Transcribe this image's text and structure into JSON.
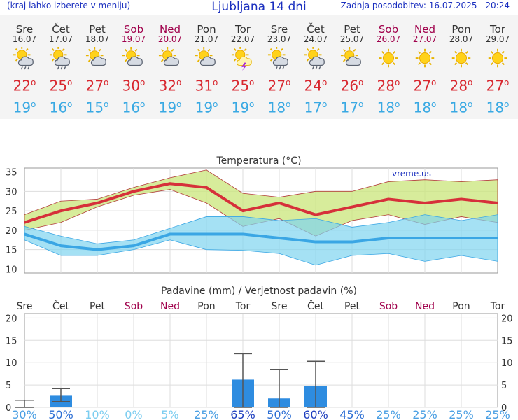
{
  "header": {
    "menu_hint": "(kraj lahko izberete v meniju)",
    "title": "Ljubljana 14 dni",
    "updated": "Zadnja posodobitev: 16.07.2025 - 20:24"
  },
  "days": [
    {
      "name": "Sre",
      "date": "16.07",
      "weekend": false,
      "icon": "sun-cloud-rain-icon",
      "max": "22",
      "min": "19"
    },
    {
      "name": "Čet",
      "date": "17.07",
      "weekend": false,
      "icon": "sun-cloud-rain-icon",
      "max": "25",
      "min": "16"
    },
    {
      "name": "Pet",
      "date": "18.07",
      "weekend": false,
      "icon": "sun-cloud-icon",
      "max": "27",
      "min": "15"
    },
    {
      "name": "Sob",
      "date": "19.07",
      "weekend": true,
      "icon": "sun-cloud-icon",
      "max": "30",
      "min": "16"
    },
    {
      "name": "Ned",
      "date": "20.07",
      "weekend": true,
      "icon": "sun-cloud-icon",
      "max": "32",
      "min": "19"
    },
    {
      "name": "Pon",
      "date": "21.07",
      "weekend": false,
      "icon": "sun-cloud-icon",
      "max": "31",
      "min": "19"
    },
    {
      "name": "Tor",
      "date": "22.07",
      "weekend": false,
      "icon": "sun-cloud-storm-icon",
      "max": "25",
      "min": "19"
    },
    {
      "name": "Sre",
      "date": "23.07",
      "weekend": false,
      "icon": "sun-cloud-rain-icon",
      "max": "27",
      "min": "18"
    },
    {
      "name": "Čet",
      "date": "24.07",
      "weekend": false,
      "icon": "sun-cloud-rain-icon",
      "max": "24",
      "min": "17"
    },
    {
      "name": "Pet",
      "date": "25.07",
      "weekend": false,
      "icon": "sun-cloud-icon",
      "max": "26",
      "min": "17"
    },
    {
      "name": "Sob",
      "date": "26.07",
      "weekend": true,
      "icon": "sun-icon",
      "max": "28",
      "min": "18"
    },
    {
      "name": "Ned",
      "date": "27.07",
      "weekend": true,
      "icon": "sun-icon",
      "max": "27",
      "min": "18"
    },
    {
      "name": "Pon",
      "date": "28.07",
      "weekend": false,
      "icon": "sun-icon",
      "max": "28",
      "min": "18"
    },
    {
      "name": "Tor",
      "date": "29.07",
      "weekend": false,
      "icon": "sun-icon",
      "max": "27",
      "min": "18"
    }
  ],
  "chart_data": [
    {
      "type": "line",
      "title": "Temperatura (°C)",
      "watermark": "vreme.us",
      "ylim": [
        9,
        36
      ],
      "yticks": [
        10,
        15,
        20,
        25,
        30,
        35
      ],
      "grid": true,
      "series": [
        {
          "values": [
            22,
            25,
            27,
            30,
            32,
            31,
            25,
            27,
            24,
            26,
            28,
            27,
            28,
            27
          ],
          "color": "#d6303a",
          "band_low": [
            20,
            22,
            26,
            29,
            30.5,
            27,
            21,
            23,
            18.5,
            22.5,
            24,
            21.5,
            23.5,
            22
          ],
          "band_high": [
            24,
            27.5,
            28,
            31,
            33.5,
            35.5,
            29.5,
            28.5,
            30,
            30,
            32.5,
            33,
            32.5,
            33
          ],
          "band_color": "#c9e57a"
        },
        {
          "values": [
            19,
            16,
            15,
            16,
            19,
            19,
            19,
            18,
            17,
            17,
            18,
            18,
            18,
            18
          ],
          "color": "#3aa6e4",
          "band_low": [
            17.5,
            13.5,
            13.5,
            15,
            17.5,
            15,
            14.8,
            14,
            11,
            13.5,
            14,
            12,
            13.5,
            12
          ],
          "band_high": [
            21,
            18.5,
            16.5,
            17.5,
            20.5,
            23.5,
            23.5,
            22.5,
            23,
            20.8,
            22,
            24,
            22.5,
            24
          ],
          "band_color": "#7fd4ef"
        }
      ]
    },
    {
      "type": "bar",
      "title": "Padavine (mm) / Verjetnost padavin (%)",
      "categories": [
        "Sre",
        "Čet",
        "Pet",
        "Sob",
        "Ned",
        "Pon",
        "Tor",
        "Sre",
        "Čet",
        "Pet",
        "Sob",
        "Ned",
        "Pon",
        "Tor"
      ],
      "weekend": [
        false,
        false,
        false,
        true,
        true,
        false,
        false,
        false,
        false,
        false,
        true,
        true,
        false,
        false
      ],
      "ylim": [
        0,
        21
      ],
      "yticks": [
        0,
        5,
        10,
        15,
        20
      ],
      "grid": true,
      "values": [
        0,
        2.6,
        0,
        0,
        0,
        0,
        6.2,
        2,
        4.8,
        0,
        0,
        0,
        0,
        0
      ],
      "err_low": [
        0,
        1.3,
        0,
        0,
        0,
        0,
        0,
        0,
        0,
        0,
        0,
        0,
        0,
        0
      ],
      "err_high": [
        1.6,
        4.2,
        0,
        0,
        0,
        0,
        12,
        8.5,
        10.3,
        0,
        0,
        0,
        0,
        0
      ],
      "probability": [
        "30%",
        "50%",
        "10%",
        "0%",
        "5%",
        "25%",
        "65%",
        "50%",
        "60%",
        "45%",
        "25%",
        "25%",
        "25%",
        "25%"
      ],
      "bar_color": "#2e8ce0"
    }
  ]
}
